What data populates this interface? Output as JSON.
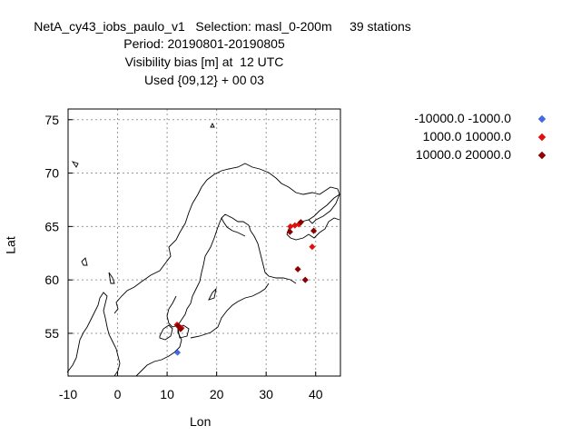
{
  "title": {
    "line1": "NetA_cy43_iobs_paulo_v1   Selection: masl_0-200m     39 stations",
    "line2": "Period: 20190801-20190805",
    "line3": "Visibility bias [m] at  12 UTC",
    "line4": "Used {09,12} + 00 03"
  },
  "axes": {
    "xlabel": "Lon",
    "ylabel": "Lat",
    "xlim": [
      -10,
      45
    ],
    "ylim": [
      51,
      76
    ],
    "xticks": [
      -10,
      0,
      10,
      20,
      30,
      40
    ],
    "yticks": [
      55,
      60,
      65,
      70,
      75
    ],
    "grid": true
  },
  "legend": {
    "placement": "top-right",
    "entries": [
      {
        "label": "-10000.0 -1000.0",
        "color": "#4169e1"
      },
      {
        "label": "1000.0 10000.0",
        "color": "#e01010"
      },
      {
        "label": "10000.0 20000.0",
        "color": "#8b0000"
      }
    ]
  },
  "chart_data": {
    "type": "scatter",
    "series": [
      {
        "name": "-10000.0 -1000.0",
        "color": "#4169e1",
        "points": [
          [
            12.1,
            53.2
          ]
        ]
      },
      {
        "name": "1000.0 10000.0",
        "color": "#e01010",
        "points": [
          [
            34.9,
            65.0
          ],
          [
            35.8,
            65.1
          ],
          [
            36.6,
            65.2
          ],
          [
            39.3,
            63.1
          ],
          [
            12.5,
            55.6
          ],
          [
            12.0,
            55.8
          ],
          [
            12.9,
            55.5
          ]
        ]
      },
      {
        "name": "10000.0 20000.0",
        "color": "#8b0000",
        "points": [
          [
            34.8,
            64.5
          ],
          [
            37.0,
            65.4
          ],
          [
            39.6,
            64.6
          ],
          [
            36.4,
            61.0
          ],
          [
            37.9,
            60.0
          ],
          [
            12.2,
            55.7
          ],
          [
            12.7,
            55.4
          ]
        ]
      }
    ]
  }
}
